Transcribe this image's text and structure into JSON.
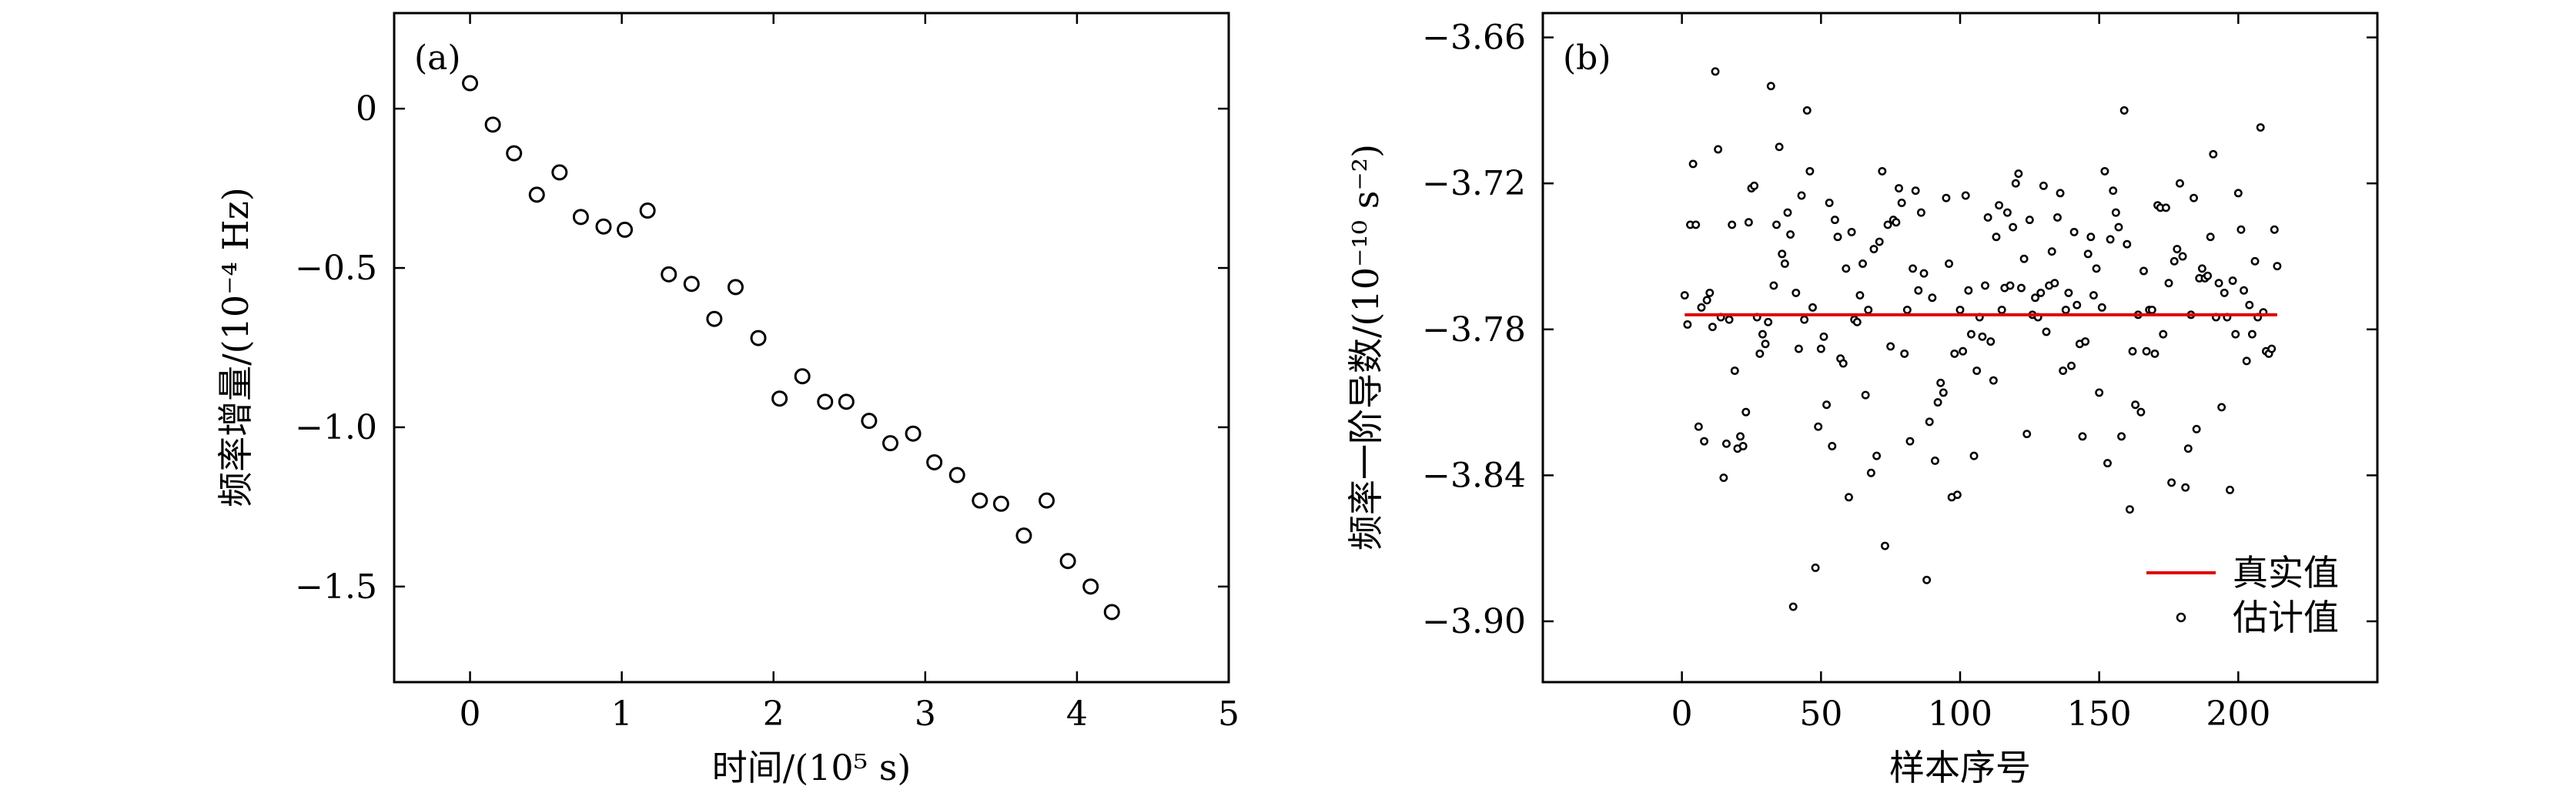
{
  "chart_data": [
    {
      "type": "scatter",
      "panel_label": "(a)",
      "xlabel": "时间/(10⁵ s)",
      "ylabel": "频率增量/(10⁻⁴ Hz)",
      "xlim": [
        -0.5,
        5
      ],
      "ylim": [
        -1.8,
        0.3
      ],
      "xticks": [
        0,
        1,
        2,
        3,
        4,
        5
      ],
      "xtick_labels": [
        "0",
        "1",
        "2",
        "3",
        "4",
        "5"
      ],
      "yticks": [
        0,
        -0.5,
        -1.0,
        -1.5
      ],
      "ytick_labels": [
        "0",
        "−0.5",
        "−1.0",
        "−1.5"
      ],
      "grid": false,
      "marker": "open-circle",
      "x": [
        0.0,
        0.15,
        0.29,
        0.44,
        0.59,
        0.73,
        0.88,
        1.02,
        1.17,
        1.31,
        1.46,
        1.61,
        1.75,
        1.9,
        2.04,
        2.19,
        2.34,
        2.48,
        2.63,
        2.77,
        2.92,
        3.06,
        3.21,
        3.36,
        3.5,
        3.65,
        3.8,
        3.94,
        4.09,
        4.23
      ],
      "y": [
        0.08,
        -0.05,
        -0.14,
        -0.27,
        -0.2,
        -0.34,
        -0.37,
        -0.38,
        -0.32,
        -0.52,
        -0.55,
        -0.66,
        -0.56,
        -0.72,
        -0.91,
        -0.84,
        -0.92,
        -0.92,
        -0.98,
        -1.05,
        -1.02,
        -1.11,
        -1.15,
        -1.23,
        -1.24,
        -1.34,
        -1.23,
        -1.42,
        -1.5,
        -1.58
      ]
    },
    {
      "type": "scatter",
      "panel_label": "(b)",
      "xlabel": "样本序号",
      "ylabel": "频率一阶导数/(10⁻¹⁰ s⁻²)",
      "xlim": [
        -50,
        250
      ],
      "ylim": [
        -3.925,
        -3.65
      ],
      "xticks": [
        0,
        50,
        100,
        150,
        200
      ],
      "xtick_labels": [
        "0",
        "50",
        "100",
        "150",
        "200"
      ],
      "yticks": [
        -3.66,
        -3.72,
        -3.78,
        -3.84,
        -3.9
      ],
      "ytick_labels": [
        "−3.66",
        "−3.72",
        "−3.78",
        "−3.84",
        "−3.90"
      ],
      "grid": false,
      "legend": "lower-right",
      "true_value": {
        "name": "真实值",
        "value": -3.774,
        "color": "#e00000"
      },
      "estimates": {
        "name": "估计值",
        "color": "#000000",
        "values": [
          -3.766,
          -3.778,
          -3.737,
          -3.712,
          -3.737,
          -3.82,
          -3.771,
          -3.826,
          -3.768,
          -3.765,
          -3.779,
          -3.674,
          -3.706,
          -3.775,
          -3.841,
          -3.827,
          -3.776,
          -3.737,
          -3.797,
          -3.829,
          -3.824,
          -3.828,
          -3.814,
          -3.736,
          -3.722,
          -3.721,
          -3.775,
          -3.79,
          -3.782,
          -3.786,
          -3.777,
          -3.68,
          -3.762,
          -3.737,
          -3.705,
          -3.749,
          -3.753,
          -3.732,
          -3.741,
          -3.894,
          -3.765,
          -3.788,
          -3.725,
          -3.776,
          -3.69,
          -3.715,
          -3.771,
          -3.878,
          -3.82,
          -3.788,
          -3.783,
          -3.811,
          -3.728,
          -3.828,
          -3.735,
          -3.742,
          -3.792,
          -3.794,
          -3.755,
          -3.849,
          -3.74,
          -3.776,
          -3.777,
          -3.766,
          -3.753,
          -3.807,
          -3.772,
          -3.839,
          -3.747,
          -3.832,
          -3.744,
          -3.715,
          -3.869,
          -3.737,
          -3.787,
          -3.735,
          -3.736,
          -3.722,
          -3.728,
          -3.79,
          -3.772,
          -3.826,
          -3.755,
          -3.723,
          -3.764,
          -3.732,
          -3.757,
          -3.883,
          -3.818,
          -3.767,
          -3.834,
          -3.81,
          -3.802,
          -3.806,
          -3.726,
          -3.753,
          -3.849,
          -3.79,
          -3.848,
          -3.772,
          -3.789,
          -3.725,
          -3.764,
          -3.782,
          -3.832,
          -3.797,
          -3.775,
          -3.783,
          -3.762,
          -3.734,
          -3.785,
          -3.801,
          -3.742,
          -3.729,
          -3.772,
          -3.763,
          -3.732,
          -3.762,
          -3.738,
          -3.72,
          -3.716,
          -3.763,
          -3.751,
          -3.823,
          -3.735,
          -3.774,
          -3.767,
          -3.775,
          -3.765,
          -3.721,
          -3.781,
          -3.762,
          -3.748,
          -3.761,
          -3.734,
          -3.724,
          -3.797,
          -3.772,
          -3.765,
          -3.795,
          -3.74,
          -3.77,
          -3.786,
          -3.824,
          -3.785,
          -3.749,
          -3.742,
          -3.766,
          -3.755,
          -3.806,
          -3.771,
          -3.715,
          -3.835,
          -3.743,
          -3.723,
          -3.732,
          -3.738,
          -3.824,
          -3.69,
          -3.745,
          -3.854,
          -3.789,
          -3.811,
          -3.774,
          -3.814,
          -3.756,
          -3.789,
          -3.772,
          -3.772,
          -3.79,
          -3.729,
          -3.73,
          -3.782,
          -3.73,
          -3.761,
          -3.843,
          -3.752,
          -3.747,
          -3.72,
          -3.75,
          -3.845,
          -3.829,
          -3.774,
          -3.726,
          -3.821,
          -3.759,
          -3.755,
          -3.759,
          -3.758,
          -3.742,
          -3.708,
          -3.775,
          -3.761,
          -3.812,
          -3.765,
          -3.775,
          -3.846,
          -3.76,
          -3.782,
          -3.724,
          -3.739,
          -3.764,
          -3.793,
          -3.77,
          -3.782,
          -3.752,
          -3.775,
          -3.697,
          -3.773,
          -3.789,
          -3.79,
          -3.788,
          -3.739,
          -3.754
        ]
      }
    }
  ]
}
